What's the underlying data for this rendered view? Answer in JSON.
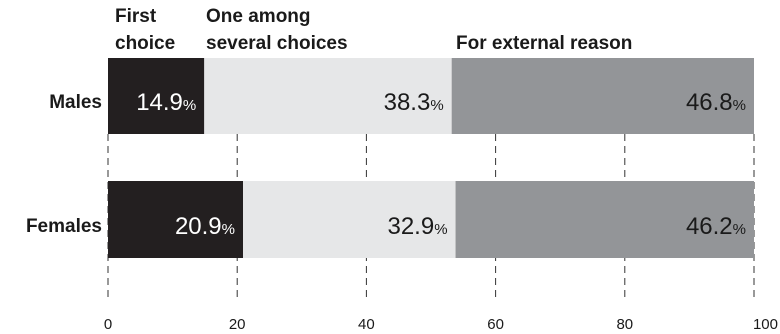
{
  "chart_data": {
    "type": "bar",
    "orientation": "horizontal",
    "stacked": true,
    "categories": [
      "Males",
      "Females"
    ],
    "series": [
      {
        "name": "First\nchoice",
        "values": [
          14.9,
          20.9
        ],
        "color": "#231f20",
        "label_color": "#ffffff"
      },
      {
        "name": "One among\nseveral choices",
        "values": [
          38.3,
          32.9
        ],
        "color": "#e6e7e8",
        "label_color": "#1a1a1a"
      },
      {
        "name": "For external reason",
        "values": [
          46.8,
          46.2
        ],
        "color": "#939598",
        "label_color": "#1a1a1a"
      }
    ],
    "value_suffix": "%",
    "xlim": [
      0,
      100
    ],
    "xticks": [
      0,
      20,
      40,
      60,
      80,
      100
    ],
    "grid": "dashed-vertical",
    "legend": "top"
  }
}
